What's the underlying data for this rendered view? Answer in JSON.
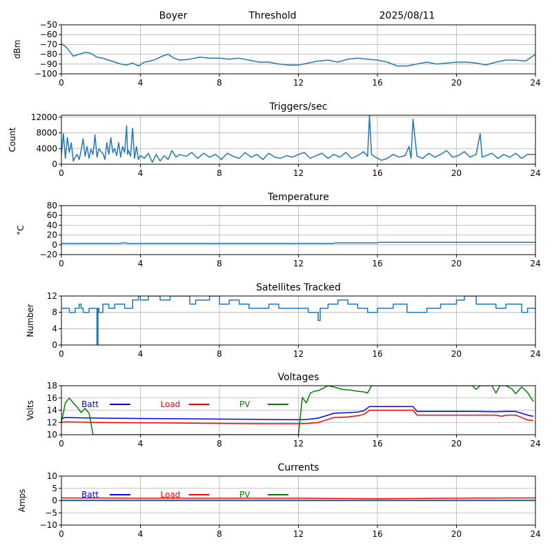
{
  "header": {
    "station": "Boyer",
    "mode": "Threshold",
    "date": "2025/08/11"
  },
  "colors": {
    "series": "#1f77b4",
    "batt": "#0000ff",
    "load": "#ff0000",
    "pv": "#008000",
    "grid": "#b0b0b0"
  },
  "chart_data": [
    {
      "id": "rssi",
      "type": "line",
      "title": "",
      "ylabel": "dBm",
      "xlim": [
        0,
        24
      ],
      "ylim": [
        -100,
        -50
      ],
      "xticks": [
        0,
        4,
        8,
        12,
        16,
        20,
        24
      ],
      "yticks": [
        -100,
        -90,
        -80,
        -70,
        -60,
        -50
      ],
      "grid": true,
      "series": [
        {
          "color": "#1f77b4",
          "x": [
            0,
            0.3,
            0.6,
            0.9,
            1.2,
            1.5,
            1.8,
            2.1,
            2.4,
            2.7,
            3.0,
            3.3,
            3.6,
            3.9,
            4.2,
            4.5,
            4.8,
            5.1,
            5.4,
            5.7,
            6.0,
            6.5,
            7.0,
            7.5,
            8.0,
            8.5,
            9.0,
            9.5,
            10.0,
            10.5,
            11.0,
            11.5,
            12.0,
            12.5,
            13.0,
            13.5,
            14.0,
            14.5,
            15.0,
            15.5,
            16.0,
            16.5,
            17.0,
            17.5,
            18.0,
            18.5,
            19.0,
            19.5,
            20.0,
            20.5,
            21.0,
            21.5,
            22.0,
            22.5,
            23.0,
            23.5,
            24.0
          ],
          "y": [
            -69,
            -74,
            -82,
            -80,
            -78,
            -79,
            -83,
            -84,
            -86,
            -88,
            -90,
            -91,
            -89,
            -92,
            -88,
            -87,
            -85,
            -82,
            -80,
            -84,
            -86,
            -85,
            -83,
            -84,
            -84,
            -85,
            -84,
            -86,
            -88,
            -88,
            -90,
            -91,
            -91,
            -89,
            -87,
            -86,
            -88,
            -85,
            -84,
            -85,
            -86,
            -88,
            -92,
            -92,
            -90,
            -88,
            -90,
            -89,
            -88,
            -88,
            -89,
            -91,
            -88,
            -86,
            -86,
            -87,
            -80
          ]
        }
      ]
    },
    {
      "id": "triggers",
      "type": "line",
      "title": "Triggers/sec",
      "ylabel": "Count",
      "xlim": [
        0,
        24
      ],
      "ylim": [
        0,
        12500
      ],
      "xticks": [
        0,
        4,
        8,
        12,
        16,
        20,
        24
      ],
      "yticks": [
        0,
        4000,
        8000,
        12000
      ],
      "grid": true,
      "series": [
        {
          "color": "#1f77b4",
          "x": [
            0,
            0.1,
            0.2,
            0.3,
            0.4,
            0.5,
            0.6,
            0.7,
            0.8,
            0.9,
            1.0,
            1.1,
            1.2,
            1.3,
            1.4,
            1.5,
            1.6,
            1.7,
            1.8,
            1.9,
            2.0,
            2.1,
            2.2,
            2.3,
            2.4,
            2.5,
            2.6,
            2.7,
            2.8,
            2.9,
            3.0,
            3.1,
            3.2,
            3.3,
            3.35,
            3.4,
            3.5,
            3.6,
            3.7,
            3.75,
            3.8,
            3.9,
            4.0,
            4.2,
            4.4,
            4.6,
            4.8,
            5.0,
            5.2,
            5.4,
            5.6,
            5.8,
            6.0,
            6.3,
            6.6,
            6.9,
            7.2,
            7.5,
            7.8,
            8.1,
            8.4,
            8.7,
            9.0,
            9.3,
            9.6,
            9.9,
            10.2,
            10.5,
            10.8,
            11.1,
            11.4,
            11.7,
            12.0,
            12.3,
            12.6,
            12.9,
            13.2,
            13.5,
            13.8,
            14.1,
            14.4,
            14.7,
            15.0,
            15.3,
            15.5,
            15.6,
            15.7,
            15.9,
            16.2,
            16.5,
            16.8,
            17.1,
            17.4,
            17.6,
            17.7,
            17.8,
            18.0,
            18.3,
            18.6,
            18.9,
            19.2,
            19.5,
            19.8,
            20.1,
            20.4,
            20.7,
            21.0,
            21.2,
            21.3,
            21.5,
            21.8,
            22.1,
            22.4,
            22.7,
            23.0,
            23.3,
            23.6,
            24.0
          ],
          "y": [
            2500,
            7800,
            1500,
            6800,
            3000,
            5500,
            800,
            1800,
            2500,
            1200,
            3500,
            6500,
            2000,
            4500,
            1500,
            3800,
            2500,
            7500,
            1800,
            4000,
            3200,
            2800,
            1200,
            5500,
            2500,
            6800,
            3000,
            4000,
            2200,
            5500,
            1800,
            4500,
            3000,
            9800,
            2500,
            3500,
            2000,
            9200,
            1500,
            3000,
            4500,
            1200,
            2200,
            1500,
            2800,
            500,
            2500,
            800,
            2200,
            1200,
            3500,
            1800,
            2500,
            2000,
            3000,
            1500,
            2800,
            1800,
            2500,
            1200,
            2800,
            2000,
            1500,
            3000,
            1800,
            2500,
            1200,
            2800,
            1800,
            1500,
            2200,
            1800,
            2500,
            3000,
            1500,
            2200,
            2800,
            1500,
            2500,
            1800,
            3000,
            1500,
            2200,
            3200,
            2000,
            12500,
            2500,
            1800,
            1000,
            1500,
            2500,
            1800,
            2200,
            4500,
            1500,
            11500,
            2000,
            1500,
            2800,
            1800,
            2500,
            3500,
            1800,
            2200,
            3200,
            1800,
            2500,
            7800,
            1800,
            2200,
            2800,
            1500,
            2500,
            1800,
            2800,
            1500,
            2500,
            2500
          ]
        }
      ]
    },
    {
      "id": "temperature",
      "type": "line",
      "title": "Temperature",
      "ylabel": "°C",
      "xlim": [
        0,
        24
      ],
      "ylim": [
        -20,
        80
      ],
      "xticks": [
        0,
        4,
        8,
        12,
        16,
        20,
        24
      ],
      "yticks": [
        -20,
        0,
        20,
        40,
        60,
        80
      ],
      "grid": true,
      "series": [
        {
          "color": "#1f77b4",
          "x": [
            0,
            3.0,
            3.05,
            3.3,
            3.35,
            13.8,
            13.85,
            16.0,
            16.05,
            24.0
          ],
          "y": [
            3,
            3,
            4,
            4,
            3,
            3,
            4,
            4,
            5,
            5
          ]
        }
      ]
    },
    {
      "id": "satellites",
      "type": "line",
      "title": "Satellites Tracked",
      "ylabel": "Number",
      "xlim": [
        0,
        24
      ],
      "ylim": [
        0,
        12
      ],
      "xticks": [
        0,
        4,
        8,
        12,
        16,
        20,
        24
      ],
      "yticks": [
        0,
        4,
        8,
        12
      ],
      "grid": true,
      "series": [
        {
          "color": "#1f77b4",
          "x": [
            0,
            0.4,
            0.4,
            0.7,
            0.7,
            0.9,
            0.9,
            1.0,
            1.0,
            1.1,
            1.1,
            1.4,
            1.4,
            1.8,
            1.8,
            1.85,
            1.85,
            1.9,
            1.9,
            2.1,
            2.1,
            2.4,
            2.4,
            2.7,
            2.7,
            3.2,
            3.2,
            3.6,
            3.6,
            3.9,
            3.9,
            4.0,
            4.0,
            4.4,
            4.4,
            5.0,
            5.0,
            5.5,
            5.5,
            6.5,
            6.5,
            6.8,
            6.8,
            7.5,
            7.5,
            8.0,
            8.0,
            8.5,
            8.5,
            9.0,
            9.0,
            9.5,
            9.5,
            10.5,
            10.5,
            11.0,
            11.0,
            11.5,
            11.5,
            12.5,
            12.5,
            13.0,
            13.0,
            13.1,
            13.1,
            13.5,
            13.5,
            14.0,
            14.0,
            14.5,
            14.5,
            15.0,
            15.0,
            15.5,
            15.5,
            16.0,
            16.0,
            16.8,
            16.8,
            17.5,
            17.5,
            18.5,
            18.5,
            19.2,
            19.2,
            20.0,
            20.0,
            20.4,
            20.4,
            21.0,
            21.0,
            22.0,
            22.0,
            22.5,
            22.5,
            23.3,
            23.3,
            23.6,
            23.6,
            24.0
          ],
          "y": [
            9,
            9,
            8,
            8,
            9,
            9,
            10,
            10,
            9,
            9,
            8,
            8,
            9,
            9,
            0,
            0,
            9,
            9,
            8,
            8,
            10,
            10,
            9,
            9,
            10,
            10,
            9,
            9,
            11,
            11,
            12,
            12,
            11,
            11,
            12,
            12,
            11,
            11,
            12,
            12,
            10,
            10,
            11,
            11,
            12,
            12,
            10,
            10,
            11,
            11,
            10,
            10,
            9,
            9,
            10,
            10,
            9,
            9,
            9,
            9,
            8,
            8,
            6,
            6,
            9,
            9,
            10,
            10,
            11,
            11,
            10,
            10,
            9,
            9,
            8,
            8,
            9,
            9,
            10,
            10,
            8,
            8,
            9,
            9,
            10,
            10,
            11,
            11,
            12,
            12,
            10,
            10,
            9,
            9,
            10,
            10,
            8,
            8,
            9,
            9
          ]
        }
      ]
    },
    {
      "id": "voltages",
      "type": "line",
      "title": "Voltages",
      "ylabel": "Volts",
      "xlim": [
        0,
        24
      ],
      "ylim": [
        10,
        18
      ],
      "xticks": [
        0,
        4,
        8,
        12,
        16,
        20,
        24
      ],
      "yticks": [
        10,
        12,
        14,
        16,
        18
      ],
      "grid": true,
      "legend": [
        "Batt",
        "Load",
        "PV"
      ],
      "series": [
        {
          "name": "Batt",
          "color": "#0000ff",
          "x": [
            0,
            0.2,
            1,
            2,
            4,
            6,
            8,
            10,
            12,
            12.5,
            13,
            13.5,
            13.8,
            14.5,
            15.0,
            15.3,
            15.6,
            16.0,
            17.8,
            18.0,
            19,
            20,
            21,
            22,
            22.5,
            23,
            23.3,
            23.6,
            23.9
          ],
          "y": [
            12.6,
            12.8,
            12.75,
            12.7,
            12.65,
            12.6,
            12.55,
            12.5,
            12.45,
            12.5,
            12.7,
            13.2,
            13.5,
            13.6,
            13.7,
            13.9,
            14.6,
            14.6,
            14.6,
            13.8,
            13.8,
            13.8,
            13.8,
            13.75,
            13.8,
            13.8,
            13.5,
            13.2,
            13.0
          ]
        },
        {
          "name": "Load",
          "color": "#ff0000",
          "x": [
            0,
            0.2,
            1,
            2,
            4,
            6,
            8,
            10,
            12,
            12.5,
            13,
            13.5,
            13.8,
            14.5,
            15.0,
            15.3,
            15.6,
            16.0,
            17.8,
            18.0,
            19,
            20,
            21,
            22,
            22.3,
            22.5,
            23,
            23.3,
            23.6,
            23.9
          ],
          "y": [
            12.0,
            12.1,
            12.05,
            12.0,
            11.95,
            11.9,
            11.85,
            11.8,
            11.8,
            11.85,
            12.0,
            12.5,
            12.8,
            12.9,
            13.1,
            13.3,
            14.0,
            14.0,
            14.0,
            13.2,
            13.2,
            13.2,
            13.2,
            13.2,
            13.0,
            13.2,
            13.2,
            12.8,
            12.4,
            12.3
          ]
        },
        {
          "name": "PV",
          "color": "#008000",
          "x": [
            0,
            0.2,
            0.4,
            0.6,
            0.8,
            1.0,
            1.2,
            1.4,
            1.6,
            1.7,
            12.0,
            12.2,
            12.4,
            12.6,
            12.8,
            13.0,
            13.2,
            13.5,
            13.8,
            14.2,
            14.6,
            15.0,
            15.3,
            15.5,
            15.7,
            20.8,
            21.0,
            21.2,
            21.5,
            21.8,
            22.0,
            22.2,
            22.5,
            22.8,
            23.0,
            23.3,
            23.6,
            23.9
          ],
          "y": [
            12.0,
            15.2,
            16.0,
            15.2,
            14.5,
            13.6,
            14.3,
            13.5,
            10.0,
            10.0,
            10.0,
            16.1,
            15.2,
            16.8,
            17.1,
            17.2,
            17.5,
            18.0,
            17.8,
            17.4,
            17.3,
            17.1,
            17.0,
            16.8,
            18.0,
            18.0,
            17.4,
            18.0,
            18.0,
            18.0,
            16.8,
            18.0,
            18.0,
            17.5,
            16.7,
            17.8,
            16.9,
            15.4
          ]
        }
      ]
    },
    {
      "id": "currents",
      "type": "line",
      "title": "Currents",
      "ylabel": "Amps",
      "xlim": [
        0,
        24
      ],
      "ylim": [
        -10,
        10
      ],
      "xticks": [
        0,
        4,
        8,
        12,
        16,
        20,
        24
      ],
      "yticks": [
        -10,
        -5,
        0,
        5,
        10
      ],
      "grid": true,
      "legend": [
        "Batt",
        "Load",
        "PV"
      ],
      "series": [
        {
          "name": "Batt",
          "color": "#0000ff",
          "x": [
            0,
            24
          ],
          "y": [
            0.1,
            0.1
          ]
        },
        {
          "name": "Load",
          "color": "#ff0000",
          "x": [
            0,
            4,
            8,
            12,
            16,
            20,
            24
          ],
          "y": [
            1.1,
            1.0,
            1.0,
            1.0,
            0.8,
            1.0,
            1.1
          ]
        },
        {
          "name": "PV",
          "color": "#008000",
          "x": [
            0,
            24
          ],
          "y": [
            0.0,
            0.0
          ]
        }
      ]
    }
  ]
}
